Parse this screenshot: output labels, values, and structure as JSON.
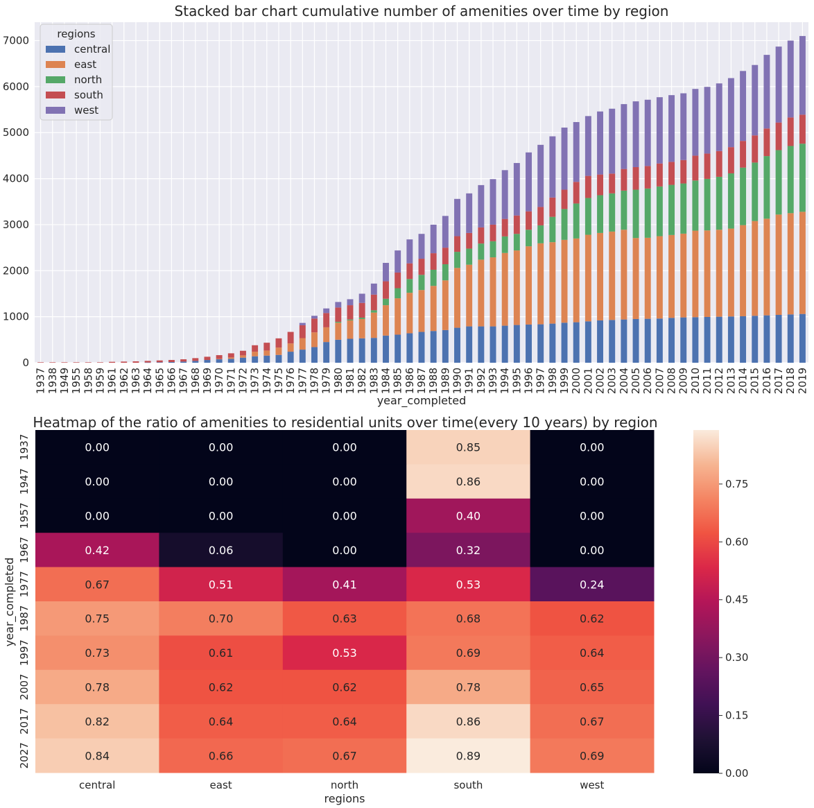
{
  "charts": [
    {
      "title": "Stacked bar chart cumulative number of amenities over time by region",
      "xlabel": "year_completed",
      "legend_title": "regions",
      "legend_placement": "top-left",
      "colors": {
        "central": "#4c72b0",
        "east": "#dd8452",
        "north": "#55a868",
        "south": "#c44e52",
        "west": "#8172b3"
      }
    },
    {
      "title": "Heatmap of the ratio of amenities to residential units over time(every 10 years) by region",
      "xlabel": "regions",
      "ylabel": "year_completed",
      "colormap": "rocket"
    }
  ],
  "chart_data": [
    {
      "type": "bar",
      "stacked": true,
      "grid": true,
      "ylim": [
        0,
        7400
      ],
      "yticks": [
        0,
        1000,
        2000,
        3000,
        4000,
        5000,
        6000,
        7000
      ],
      "categories": [
        "1937",
        "1938",
        "1949",
        "1955",
        "1958",
        "1959",
        "1961",
        "1962",
        "1963",
        "1964",
        "1965",
        "1966",
        "1967",
        "1968",
        "1969",
        "1970",
        "1971",
        "1972",
        "1973",
        "1974",
        "1975",
        "1976",
        "1977",
        "1978",
        "1979",
        "1980",
        "1981",
        "1982",
        "1983",
        "1984",
        "1985",
        "1986",
        "1987",
        "1988",
        "1989",
        "1990",
        "1991",
        "1992",
        "1993",
        "1994",
        "1995",
        "1996",
        "1997",
        "1998",
        "1999",
        "2000",
        "2001",
        "2002",
        "2003",
        "2004",
        "2005",
        "2006",
        "2007",
        "2008",
        "2009",
        "2010",
        "2011",
        "2012",
        "2013",
        "2014",
        "2015",
        "2016",
        "2017",
        "2018",
        "2019"
      ],
      "series": [
        {
          "name": "central",
          "values": [
            0,
            0,
            0,
            0,
            0,
            0,
            0,
            0,
            0,
            5,
            10,
            15,
            25,
            40,
            60,
            75,
            85,
            110,
            140,
            155,
            170,
            240,
            285,
            340,
            450,
            500,
            520,
            530,
            540,
            590,
            610,
            640,
            670,
            690,
            710,
            760,
            790,
            790,
            790,
            805,
            820,
            830,
            835,
            850,
            870,
            880,
            900,
            920,
            930,
            940,
            950,
            955,
            960,
            975,
            985,
            990,
            995,
            1000,
            1005,
            1010,
            1020,
            1030,
            1040,
            1050,
            1060
          ]
        },
        {
          "name": "east",
          "values": [
            0,
            0,
            0,
            0,
            0,
            0,
            0,
            0,
            0,
            0,
            0,
            0,
            0,
            0,
            0,
            10,
            30,
            50,
            100,
            110,
            160,
            180,
            250,
            320,
            320,
            370,
            400,
            420,
            550,
            660,
            790,
            880,
            910,
            980,
            1080,
            1300,
            1340,
            1450,
            1500,
            1580,
            1620,
            1700,
            1760,
            1770,
            1800,
            1820,
            1880,
            1900,
            1920,
            1950,
            1760,
            1760,
            1790,
            1800,
            1820,
            1880,
            1880,
            1890,
            1910,
            1980,
            2060,
            2100,
            2180,
            2200,
            2220
          ]
        },
        {
          "name": "north",
          "values": [
            0,
            0,
            0,
            0,
            0,
            0,
            0,
            0,
            0,
            0,
            0,
            0,
            0,
            0,
            0,
            0,
            0,
            0,
            0,
            0,
            0,
            0,
            0,
            0,
            0,
            20,
            20,
            30,
            50,
            140,
            220,
            300,
            330,
            350,
            350,
            350,
            350,
            350,
            350,
            360,
            360,
            360,
            390,
            550,
            670,
            760,
            800,
            820,
            830,
            850,
            1050,
            1070,
            1080,
            1090,
            1090,
            1090,
            1120,
            1150,
            1200,
            1250,
            1270,
            1360,
            1400,
            1460,
            1480
          ]
        },
        {
          "name": "south",
          "values": [
            10,
            10,
            10,
            10,
            10,
            10,
            20,
            25,
            30,
            35,
            40,
            45,
            50,
            60,
            70,
            80,
            90,
            100,
            140,
            170,
            200,
            250,
            280,
            300,
            310,
            310,
            310,
            320,
            340,
            380,
            340,
            340,
            350,
            360,
            360,
            340,
            340,
            350,
            360,
            380,
            400,
            400,
            400,
            420,
            420,
            470,
            480,
            450,
            430,
            470,
            490,
            490,
            500,
            500,
            510,
            540,
            550,
            560,
            570,
            580,
            590,
            600,
            600,
            620,
            630
          ]
        },
        {
          "name": "west",
          "values": [
            0,
            0,
            0,
            0,
            0,
            0,
            0,
            0,
            0,
            0,
            0,
            0,
            0,
            0,
            0,
            0,
            0,
            0,
            0,
            0,
            0,
            0,
            50,
            60,
            100,
            120,
            130,
            200,
            240,
            400,
            480,
            520,
            540,
            620,
            690,
            810,
            860,
            920,
            990,
            1060,
            1140,
            1280,
            1350,
            1330,
            1350,
            1300,
            1300,
            1370,
            1410,
            1410,
            1430,
            1440,
            1440,
            1450,
            1450,
            1450,
            1450,
            1470,
            1500,
            1520,
            1530,
            1600,
            1650,
            1670,
            1710
          ]
        }
      ]
    },
    {
      "type": "heatmap",
      "x_categories": [
        "central",
        "east",
        "north",
        "south",
        "west"
      ],
      "y_categories": [
        "1937",
        "1947",
        "1957",
        "1967",
        "1977",
        "1987",
        "1997",
        "2007",
        "2017",
        "2027"
      ],
      "values": [
        [
          0.0,
          0.0,
          0.0,
          0.85,
          0.0
        ],
        [
          0.0,
          0.0,
          0.0,
          0.86,
          0.0
        ],
        [
          0.0,
          0.0,
          0.0,
          0.4,
          0.0
        ],
        [
          0.42,
          0.06,
          0.0,
          0.32,
          0.0
        ],
        [
          0.67,
          0.51,
          0.41,
          0.53,
          0.24
        ],
        [
          0.75,
          0.7,
          0.63,
          0.68,
          0.62
        ],
        [
          0.73,
          0.61,
          0.53,
          0.69,
          0.64
        ],
        [
          0.78,
          0.62,
          0.62,
          0.78,
          0.65
        ],
        [
          0.82,
          0.64,
          0.64,
          0.86,
          0.67
        ],
        [
          0.84,
          0.66,
          0.67,
          0.89,
          0.69
        ]
      ],
      "value_labels": [
        [
          "0.00",
          "0.00",
          "0.00",
          "0.85",
          "0.00"
        ],
        [
          "0.00",
          "0.00",
          "0.00",
          "0.86",
          "0.00"
        ],
        [
          "0.00",
          "0.00",
          "0.00",
          "0.40",
          "0.00"
        ],
        [
          "0.42",
          "0.06",
          "0.00",
          "0.32",
          "0.00"
        ],
        [
          "0.67",
          "0.51",
          "0.41",
          "0.53",
          "0.24"
        ],
        [
          "0.75",
          "0.70",
          "0.63",
          "0.68",
          "0.62"
        ],
        [
          "0.73",
          "0.61",
          "0.53",
          "0.69",
          "0.64"
        ],
        [
          "0.78",
          "0.62",
          "0.62",
          "0.78",
          "0.65"
        ],
        [
          "0.82",
          "0.64",
          "0.64",
          "0.86",
          "0.67"
        ],
        [
          "0.84",
          "0.66",
          "0.67",
          "0.89",
          "0.69"
        ]
      ],
      "colorbar_range": [
        0,
        0.89
      ],
      "colorbar_ticks": [
        "0.00",
        "0.15",
        "0.30",
        "0.45",
        "0.60",
        "0.75"
      ]
    }
  ]
}
